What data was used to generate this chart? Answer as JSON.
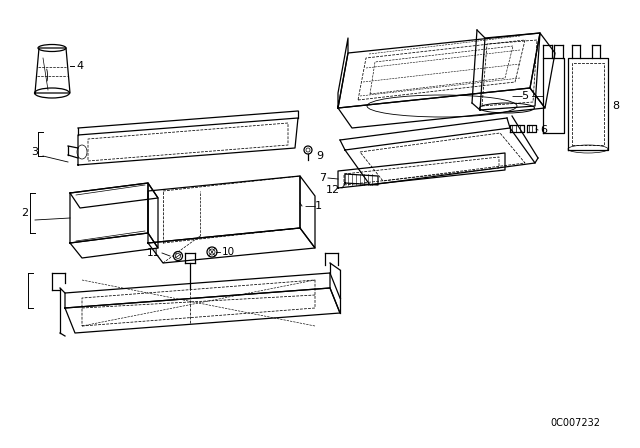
{
  "background_color": "#ffffff",
  "line_color": "#000000",
  "diagram_id": "0C007232"
}
